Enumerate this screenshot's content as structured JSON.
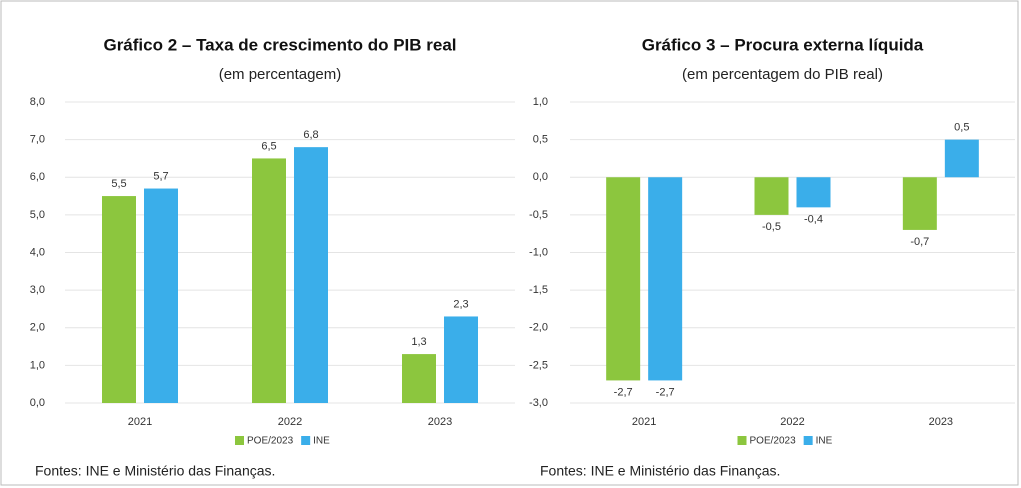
{
  "chart_data": [
    {
      "type": "bar",
      "title": "Gráfico 2 – Taxa de crescimento do PIB real",
      "subtitle": "(em percentagem)",
      "categories": [
        "2021",
        "2022",
        "2023"
      ],
      "series": [
        {
          "name": "POE/2023",
          "color": "#8cc63e",
          "values": [
            5.5,
            6.5,
            1.3
          ],
          "value_labels": [
            "5,5",
            "6,5",
            "1,3"
          ]
        },
        {
          "name": "INE",
          "color": "#3aaeea",
          "values": [
            5.7,
            6.8,
            2.3
          ],
          "value_labels": [
            "5,7",
            "6,8",
            "2,3"
          ]
        }
      ],
      "ylim": [
        0,
        8
      ],
      "yticks": [
        {
          "value": 0,
          "label": "0,0"
        },
        {
          "value": 1,
          "label": "1,0"
        },
        {
          "value": 2,
          "label": "2,0"
        },
        {
          "value": 3,
          "label": "3,0"
        },
        {
          "value": 4,
          "label": "4,0"
        },
        {
          "value": 5,
          "label": "5,0"
        },
        {
          "value": 6,
          "label": "6,0"
        },
        {
          "value": 7,
          "label": "7,0"
        },
        {
          "value": 8,
          "label": "8,0"
        }
      ],
      "grid": true,
      "legend": "bottom",
      "source": "Fontes: INE e Ministério das Finanças."
    },
    {
      "type": "bar",
      "title": "Gráfico 3 – Procura externa líquida",
      "subtitle": "(em percentagem do PIB real)",
      "categories": [
        "2021",
        "2022",
        "2023"
      ],
      "series": [
        {
          "name": "POE/2023",
          "color": "#8cc63e",
          "values": [
            -2.7,
            -0.5,
            -0.7
          ],
          "value_labels": [
            "-2,7",
            "-0,5",
            "-0,7"
          ]
        },
        {
          "name": "INE",
          "color": "#3aaeea",
          "values": [
            -2.7,
            -0.4,
            0.5
          ],
          "value_labels": [
            "-2,7",
            "-0,4",
            "0,5"
          ]
        }
      ],
      "ylim": [
        -3,
        1
      ],
      "yticks": [
        {
          "value": -3,
          "label": "-3,0"
        },
        {
          "value": -2.5,
          "label": "-2,5"
        },
        {
          "value": -2,
          "label": "-2,0"
        },
        {
          "value": -1.5,
          "label": "-1,5"
        },
        {
          "value": -1,
          "label": "-1,0"
        },
        {
          "value": -0.5,
          "label": "-0,5"
        },
        {
          "value": 0,
          "label": "0,0"
        },
        {
          "value": 0.5,
          "label": "0,5"
        },
        {
          "value": 1,
          "label": "1,0"
        }
      ],
      "grid": true,
      "legend": "bottom",
      "source": "Fontes: INE e Ministério das Finanças."
    }
  ]
}
